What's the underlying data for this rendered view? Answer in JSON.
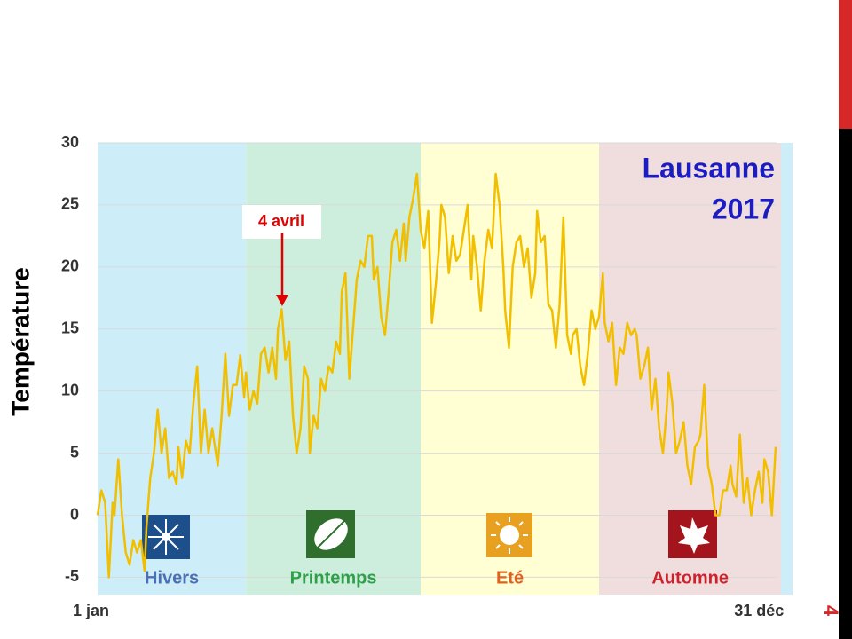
{
  "chart_data": {
    "type": "line",
    "title": [
      "Lausanne",
      "2017"
    ],
    "ylabel": "Température",
    "annotation": "4 avril",
    "page_number": "4",
    "xlim": [
      1,
      371
    ],
    "xticks": [
      {
        "value": 1,
        "label": "1 jan"
      },
      {
        "value": 365,
        "label": "31 déc"
      }
    ],
    "ylim": [
      -6.4,
      30
    ],
    "yticks": [
      -5,
      0,
      5,
      10,
      15,
      20,
      25,
      30
    ],
    "grid": true,
    "color": "#f2bf00",
    "seasons": [
      {
        "name": "Hivers",
        "start": 1,
        "end": 80,
        "color": "#cdeef9",
        "label_color": "#4a6fb5"
      },
      {
        "name": "Printemps",
        "start": 80,
        "end": 173,
        "color": "#cdeedc",
        "label_color": "#2ea04a"
      },
      {
        "name": "Eté",
        "start": 173,
        "end": 268,
        "color": "#ffffd3",
        "label_color": "#e0601e"
      },
      {
        "name": "Automne",
        "start": 268,
        "end": 365,
        "color": "#f0dedf",
        "label_color": "#d0202a"
      }
    ],
    "x": [
      1,
      3,
      5,
      7,
      9,
      10,
      12,
      14,
      16,
      18,
      20,
      22,
      24,
      26,
      27,
      29,
      31,
      33,
      35,
      37,
      39,
      41,
      43,
      44,
      46,
      48,
      50,
      52,
      54,
      56,
      58,
      60,
      62,
      63,
      65,
      67,
      69,
      71,
      73,
      75,
      77,
      79,
      80,
      82,
      84,
      86,
      88,
      90,
      92,
      94,
      96,
      97,
      99,
      101,
      103,
      105,
      107,
      109,
      111,
      113,
      114,
      116,
      118,
      120,
      122,
      124,
      126,
      128,
      130,
      131,
      133,
      135,
      137,
      139,
      141,
      143,
      145,
      147,
      148,
      150,
      152,
      154,
      156,
      158,
      160,
      162,
      164,
      165,
      167,
      169,
      171,
      173,
      175,
      177,
      179,
      181,
      183,
      184,
      186,
      188,
      190,
      192,
      194,
      196,
      198,
      200,
      201,
      203,
      205,
      207,
      209,
      211,
      213,
      215,
      217,
      218,
      220,
      222,
      224,
      226,
      228,
      230,
      232,
      234,
      235,
      237,
      239,
      241,
      243,
      245,
      247,
      249,
      251,
      253,
      254,
      256,
      258,
      260,
      262,
      264,
      266,
      268,
      270,
      271,
      273,
      275,
      277,
      279,
      281,
      283,
      285,
      287,
      288,
      290,
      292,
      294,
      296,
      298,
      300,
      302,
      304,
      305,
      307,
      309,
      311,
      313,
      315,
      317,
      319,
      321,
      322,
      324,
      326,
      328,
      330,
      332,
      334,
      336,
      338,
      339,
      341,
      343,
      345,
      347,
      349,
      351,
      353,
      355,
      356,
      358,
      360,
      362
    ],
    "values": [
      0,
      2,
      1,
      -5,
      1,
      0,
      4.5,
      0,
      -3,
      -4,
      -2,
      -3,
      -2,
      -4.5,
      -1,
      3,
      5,
      8.5,
      5,
      7,
      3,
      3.5,
      2.5,
      5.5,
      3,
      6,
      5,
      9,
      12,
      5,
      8.5,
      5,
      7,
      6,
      4,
      8,
      13,
      8,
      10.5,
      10.5,
      12.9,
      9.5,
      11.5,
      8.5,
      10,
      9,
      13,
      13.5,
      11.5,
      13.5,
      11,
      15,
      16.6,
      12.5,
      14,
      8,
      5,
      7,
      12,
      11,
      5,
      8,
      7,
      11,
      10,
      12,
      11.5,
      14,
      13,
      18,
      19.5,
      11,
      15,
      19,
      20.5,
      20,
      22.5,
      22.5,
      19,
      20,
      16,
      14.5,
      18,
      22,
      23,
      20.5,
      23.5,
      20.5,
      24,
      25.5,
      27.5,
      23,
      21.5,
      24.5,
      15.5,
      18.5,
      22,
      25,
      24,
      19.5,
      22.5,
      20.5,
      21,
      23,
      25,
      19,
      22.5,
      20,
      16.5,
      20.5,
      23,
      21.5,
      27.5,
      25,
      20,
      16.5,
      13.5,
      20,
      22,
      22.5,
      20,
      21.5,
      17.5,
      19.5,
      24.5,
      22,
      22.5,
      17,
      16.5,
      13.5,
      17,
      24,
      14.5,
      13,
      14.5,
      15,
      12,
      10.5,
      13,
      16.5,
      15,
      16,
      19.5,
      15.5,
      14,
      15.5,
      10.5,
      13.5,
      13,
      15.5,
      14.5,
      15,
      14.5,
      11,
      12,
      13.5,
      8.5,
      11,
      7,
      5,
      8.5,
      11.5,
      9,
      5,
      6,
      7.5,
      4,
      2.5,
      5.5,
      6,
      6.5,
      10.5,
      4,
      2.5,
      0,
      0,
      2,
      2,
      4,
      2.5,
      1.5,
      6.5,
      1,
      3,
      0,
      2,
      3.5,
      1,
      4.5,
      3.5,
      0,
      5.5
    ]
  }
}
